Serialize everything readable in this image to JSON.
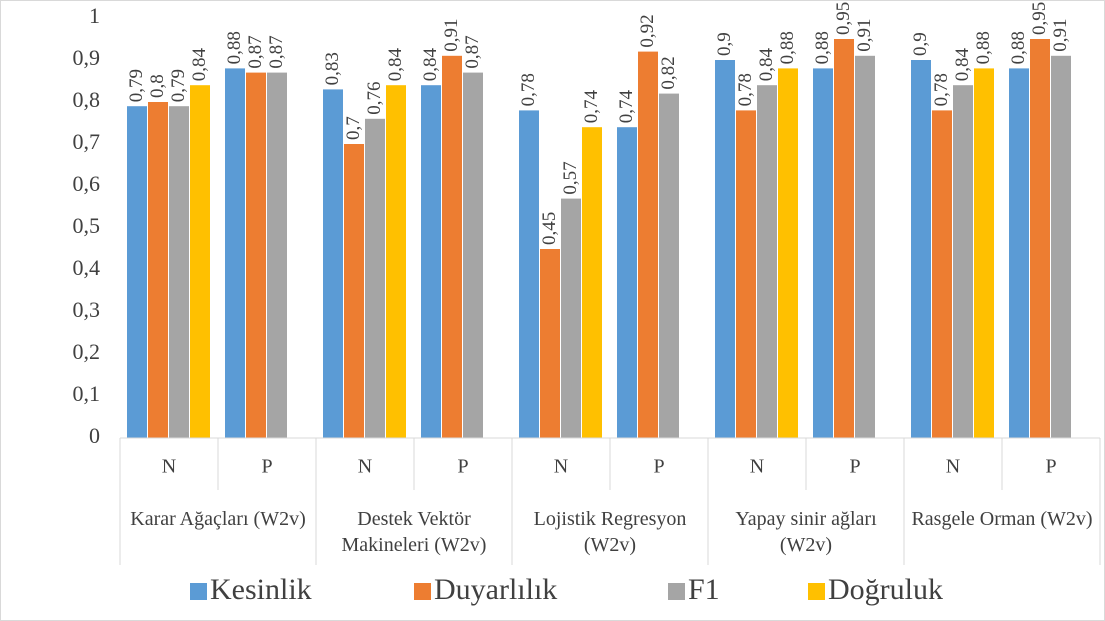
{
  "chart_data": {
    "type": "bar",
    "groups": [
      "Karar Ağaçları (W2v)",
      "Destek Vektör Makineleri (W2v)",
      "Lojistik Regresyon (W2v)",
      "Yapay sinir ağları (W2v)",
      "Rasgele Orman (W2v)"
    ],
    "categories": [
      "N",
      "P",
      "N",
      "P",
      "N",
      "P",
      "N",
      "P",
      "N",
      "P"
    ],
    "series": [
      {
        "name": "Kesinlik",
        "color": "#5b9bd5",
        "values": [
          0.79,
          0.88,
          0.83,
          0.84,
          0.78,
          0.74,
          0.9,
          0.88,
          0.9,
          0.88
        ],
        "value_labels": [
          "0,79",
          "0,88",
          "0,83",
          "0,84",
          "0,78",
          "0,74",
          "0,9",
          "0,88",
          "0,9",
          "0,88"
        ]
      },
      {
        "name": "Duyarlılık",
        "color": "#ed7d31",
        "values": [
          0.8,
          0.87,
          0.7,
          0.91,
          0.45,
          0.92,
          0.78,
          0.95,
          0.78,
          0.95
        ],
        "value_labels": [
          "0,8",
          "0,87",
          "0,7",
          "0,91",
          "0,45",
          "0,92",
          "0,78",
          "0,95",
          "0,78",
          "0,95"
        ]
      },
      {
        "name": "F1",
        "color": "#a5a5a5",
        "values": [
          0.79,
          0.87,
          0.76,
          0.87,
          0.57,
          0.82,
          0.84,
          0.91,
          0.84,
          0.91
        ],
        "value_labels": [
          "0,79",
          "0,87",
          "0,76",
          "0,87",
          "0,57",
          "0,82",
          "0,84",
          "0,91",
          "0,84",
          "0,91"
        ]
      },
      {
        "name": "Doğruluk",
        "color": "#ffc000",
        "values": [
          0.84,
          null,
          0.84,
          null,
          0.74,
          null,
          0.88,
          null,
          0.88,
          null
        ],
        "value_labels": [
          "0,84",
          null,
          "0,84",
          null,
          "0,74",
          null,
          "0,88",
          null,
          "0,88",
          null
        ]
      }
    ],
    "ylim": [
      0,
      1
    ],
    "yticks": [
      0,
      {
        "value": 0.1,
        "label": "0,1"
      },
      {
        "value": 0.2,
        "label": "0,2"
      },
      {
        "value": 0.3,
        "label": "0,3"
      },
      {
        "value": 0.4,
        "label": "0,4"
      },
      {
        "value": 0.5,
        "label": "0,5"
      },
      {
        "value": 0.6,
        "label": "0,6"
      },
      {
        "value": 0.7,
        "label": "0,7"
      },
      {
        "value": 0.8,
        "label": "0,8"
      },
      {
        "value": 0.9,
        "label": "0,9"
      },
      1
    ],
    "grid": false,
    "legend": "bottom"
  }
}
